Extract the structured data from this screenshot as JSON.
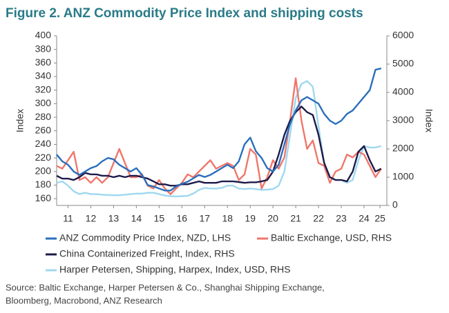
{
  "chart_data": {
    "type": "line",
    "title": "Figure 2.  ANZ Commodity Price Index and shipping costs",
    "ylabel": "Index",
    "y2label": "Index",
    "x": [
      2011.0,
      2011.25,
      2011.5,
      2011.75,
      2012.0,
      2012.25,
      2012.5,
      2012.75,
      2013.0,
      2013.25,
      2013.5,
      2013.75,
      2014.0,
      2014.25,
      2014.5,
      2014.75,
      2015.0,
      2015.25,
      2015.5,
      2015.75,
      2016.0,
      2016.25,
      2016.5,
      2016.75,
      2017.0,
      2017.25,
      2017.5,
      2017.75,
      2018.0,
      2018.25,
      2018.5,
      2018.75,
      2019.0,
      2019.25,
      2019.5,
      2019.75,
      2020.0,
      2020.25,
      2020.5,
      2020.75,
      2021.0,
      2021.25,
      2021.5,
      2021.75,
      2022.0,
      2022.25,
      2022.5,
      2022.75,
      2023.0,
      2023.25,
      2023.5,
      2023.75,
      2024.0,
      2024.25,
      2024.5,
      2024.75,
      2025.0,
      2025.25
    ],
    "xlim": [
      2011,
      2025.5
    ],
    "xticks": [
      {
        "value": 2011.5,
        "label": "11"
      },
      {
        "value": 2012.5,
        "label": "12"
      },
      {
        "value": 2013.5,
        "label": "13"
      },
      {
        "value": 2014.5,
        "label": "14"
      },
      {
        "value": 2015.5,
        "label": "15"
      },
      {
        "value": 2016.5,
        "label": "16"
      },
      {
        "value": 2017.5,
        "label": "17"
      },
      {
        "value": 2018.5,
        "label": "18"
      },
      {
        "value": 2019.5,
        "label": "19"
      },
      {
        "value": 2020.5,
        "label": "20"
      },
      {
        "value": 2021.5,
        "label": "21"
      },
      {
        "value": 2022.5,
        "label": "22"
      },
      {
        "value": 2023.5,
        "label": "23"
      },
      {
        "value": 2024.5,
        "label": "24"
      },
      {
        "value": 2025.2,
        "label": "25"
      }
    ],
    "ylim": [
      150,
      400
    ],
    "yticks": [
      160,
      180,
      200,
      220,
      240,
      260,
      280,
      300,
      320,
      340,
      360,
      380,
      400
    ],
    "y2lim": [
      0,
      6000
    ],
    "y2ticks": [
      0,
      1000,
      2000,
      3000,
      4000,
      5000,
      6000
    ],
    "series": [
      {
        "name": "ANZ Commodity Price Index, NZD, LHS",
        "color": "#2a6ebb",
        "values": [
          225,
          215,
          210,
          200,
          195,
          200,
          205,
          208,
          215,
          220,
          218,
          210,
          205,
          200,
          205,
          195,
          180,
          178,
          175,
          172,
          172,
          178,
          182,
          185,
          190,
          195,
          192,
          195,
          200,
          205,
          210,
          205,
          215,
          240,
          250,
          230,
          220,
          205,
          200,
          210,
          240,
          270,
          290,
          305,
          310,
          305,
          300,
          285,
          275,
          270,
          275,
          285,
          290,
          300,
          310,
          320,
          350,
          352
        ]
      },
      {
        "name": "Baltic Exchange, USD, RHS",
        "color": "#f0766b",
        "axis": "y2",
        "values": [
          1400,
          1300,
          1600,
          1900,
          900,
          1000,
          800,
          1000,
          800,
          1000,
          1500,
          2000,
          1500,
          1000,
          1000,
          1100,
          700,
          600,
          900,
          600,
          400,
          600,
          800,
          1100,
          1000,
          1200,
          1400,
          1600,
          1300,
          1400,
          1500,
          1400,
          900,
          1100,
          2000,
          1800,
          600,
          1000,
          1600,
          1300,
          1700,
          3000,
          4500,
          3000,
          2000,
          2300,
          1500,
          1400,
          800,
          1200,
          1300,
          1800,
          1700,
          1900,
          1800,
          1400,
          1000,
          1300
        ]
      },
      {
        "name": "China Containerized Freight, Index, RHS",
        "color": "#1c1a4a",
        "axis": "y2",
        "values": [
          1050,
          950,
          950,
          900,
          1000,
          1150,
          1100,
          1100,
          1050,
          1050,
          1000,
          1050,
          1000,
          1050,
          1050,
          1000,
          950,
          850,
          750,
          750,
          700,
          700,
          750,
          750,
          800,
          850,
          800,
          800,
          800,
          850,
          850,
          850,
          830,
          800,
          820,
          820,
          850,
          900,
          1200,
          1800,
          2500,
          3000,
          3300,
          3500,
          3300,
          3200,
          2500,
          1500,
          1000,
          900,
          900,
          850,
          1200,
          1900,
          2100,
          1600,
          1200,
          1300
        ]
      },
      {
        "name": "Harper Petersen, Shipping, Harpex, Index, USD, RHS",
        "color": "#9fd8ef",
        "axis": "y2",
        "values": [
          800,
          850,
          700,
          500,
          400,
          450,
          400,
          400,
          380,
          370,
          360,
          360,
          380,
          400,
          420,
          420,
          450,
          450,
          400,
          350,
          330,
          320,
          330,
          340,
          420,
          550,
          620,
          600,
          600,
          620,
          700,
          700,
          600,
          580,
          600,
          580,
          550,
          560,
          580,
          700,
          1200,
          2500,
          3800,
          4300,
          4400,
          4200,
          2800,
          1500,
          1000,
          900,
          900,
          800,
          900,
          1600,
          2100,
          2050,
          2050,
          2100
        ]
      }
    ],
    "source_lines": [
      "Source: Baltic Exchange, Harper Petersen & Co., Shanghai Shipping Exchange,",
      "Bloomberg, Macrobond, ANZ Research"
    ]
  }
}
